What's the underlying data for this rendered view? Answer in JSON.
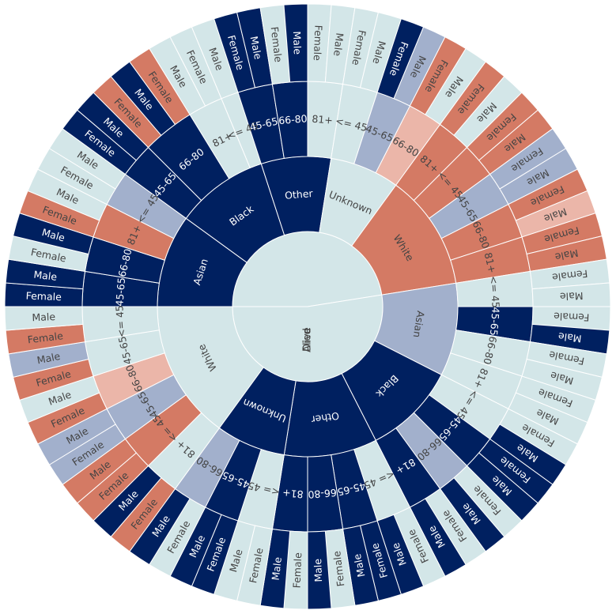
{
  "chart_data": {
    "type": "sunburst",
    "title": "",
    "palette": {
      "dark": "#002060",
      "pale": "#d3e6e8",
      "coral": "#d47a64",
      "lavender": "#a2b0cc",
      "pink": "#ebb6a9",
      "label_dark": "#ffffff",
      "label_light": "#444444",
      "stroke": "#ffffff"
    },
    "root": [
      {
        "label": "Alive",
        "color": "pale",
        "children": [
          {
            "label": "Asian",
            "color": "dark",
            "children": [
              {
                "label": "45-65",
                "color": "dark",
                "children": [
                  {
                    "label": "Female",
                    "color": "dark"
                  },
                  {
                    "label": "Male",
                    "color": "dark"
                  }
                ]
              },
              {
                "label": "66-80",
                "color": "dark",
                "children": [
                  {
                    "label": "Female",
                    "color": "pale"
                  },
                  {
                    "label": "Male",
                    "color": "dark"
                  }
                ]
              },
              {
                "label": "81+",
                "color": "coral",
                "children": [
                  {
                    "label": "Female",
                    "color": "coral"
                  },
                  {
                    "label": "Male",
                    "color": "pale"
                  }
                ]
              },
              {
                "label": "<= 45",
                "color": "lavender",
                "children": [
                  {
                    "label": "Female",
                    "color": "pale"
                  },
                  {
                    "label": "Male",
                    "color": "pale"
                  }
                ]
              }
            ]
          },
          {
            "label": "Black",
            "color": "dark",
            "children": [
              {
                "label": "45-65",
                "color": "dark",
                "children": [
                  {
                    "label": "Female",
                    "color": "dark"
                  },
                  {
                    "label": "Male",
                    "color": "dark"
                  }
                ]
              },
              {
                "label": "66-80",
                "color": "dark",
                "children": [
                  {
                    "label": "Female",
                    "color": "coral"
                  },
                  {
                    "label": "Male",
                    "color": "dark"
                  },
                  {
                    "label": "Female",
                    "color": "coral"
                  }
                ]
              },
              {
                "label": "81+",
                "color": "pale",
                "children": [
                  {
                    "label": "Male",
                    "color": "pale"
                  },
                  {
                    "label": "Female",
                    "color": "pale"
                  }
                ]
              },
              {
                "label": "<= 45",
                "color": "pale",
                "children": [
                  {
                    "label": "Male",
                    "color": "pale"
                  }
                ]
              }
            ]
          },
          {
            "label": "Other",
            "color": "dark",
            "children": [
              {
                "label": "45-65",
                "color": "dark",
                "children": [
                  {
                    "label": "Female",
                    "color": "dark"
                  },
                  {
                    "label": "Male",
                    "color": "dark"
                  }
                ]
              },
              {
                "label": "66-80",
                "color": "dark",
                "children": [
                  {
                    "label": "Female",
                    "color": "pale"
                  },
                  {
                    "label": "Male",
                    "color": "dark"
                  }
                ]
              },
              {
                "label": "81+",
                "color": "pale",
                "children": [
                  {
                    "label": "Female",
                    "color": "pale"
                  },
                  {
                    "label": "Male",
                    "color": "pale"
                  }
                ]
              }
            ]
          },
          {
            "label": "Unknown",
            "color": "pale",
            "children": [
              {
                "label": "<= 45",
                "color": "pale",
                "children": [
                  {
                    "label": "Female",
                    "color": "pale"
                  },
                  {
                    "label": "Male",
                    "color": "pale"
                  }
                ]
              },
              {
                "label": "45-65",
                "color": "lavender",
                "children": [
                  {
                    "label": "Female",
                    "color": "dark"
                  },
                  {
                    "label": "Male",
                    "color": "lavender"
                  }
                ]
              },
              {
                "label": "66-80",
                "color": "pink",
                "children": [
                  {
                    "label": "Female",
                    "color": "coral"
                  },
                  {
                    "label": "Male",
                    "color": "pale"
                  }
                ]
              }
            ]
          },
          {
            "label": "White",
            "color": "coral",
            "children": [
              {
                "label": "81+",
                "color": "coral",
                "children": [
                  {
                    "label": "Female",
                    "color": "coral"
                  },
                  {
                    "label": "Male",
                    "color": "pale"
                  }
                ]
              },
              {
                "label": "<= 45",
                "color": "coral",
                "children": [
                  {
                    "label": "Female",
                    "color": "coral"
                  },
                  {
                    "label": "Male",
                    "color": "coral"
                  }
                ]
              },
              {
                "label": "45-65",
                "color": "lavender",
                "children": [
                  {
                    "label": "Female",
                    "color": "lavender"
                  },
                  {
                    "label": "Male",
                    "color": "lavender"
                  }
                ]
              },
              {
                "label": "66-80",
                "color": "coral",
                "children": [
                  {
                    "label": "Female",
                    "color": "coral"
                  },
                  {
                    "label": "Male",
                    "color": "pink"
                  }
                ]
              },
              {
                "label": "81+",
                "color": "coral",
                "children": [
                  {
                    "label": "Female",
                    "color": "coral"
                  },
                  {
                    "label": "Male",
                    "color": "coral"
                  }
                ]
              }
            ]
          }
        ]
      },
      {
        "label": "Died",
        "color": "pale",
        "children": [
          {
            "label": "Asian",
            "color": "lavender",
            "children": [
              {
                "label": "<= 45",
                "color": "pale",
                "children": [
                  {
                    "label": "Female",
                    "color": "pale"
                  },
                  {
                    "label": "Male",
                    "color": "pale"
                  }
                ]
              },
              {
                "label": "45-65",
                "color": "dark",
                "children": [
                  {
                    "label": "Female",
                    "color": "pale"
                  },
                  {
                    "label": "Male",
                    "color": "dark"
                  }
                ]
              },
              {
                "label": "66-80",
                "color": "pale",
                "children": [
                  {
                    "label": "Female",
                    "color": "pale"
                  },
                  {
                    "label": "Male",
                    "color": "pale"
                  }
                ]
              },
              {
                "label": "81+",
                "color": "pale",
                "children": [
                  {
                    "label": "Female",
                    "color": "pale"
                  },
                  {
                    "label": "Male",
                    "color": "pale"
                  }
                ]
              }
            ]
          },
          {
            "label": "Black",
            "color": "dark",
            "children": [
              {
                "label": "<= 45",
                "color": "pale",
                "children": [
                  {
                    "label": "Female",
                    "color": "pale"
                  },
                  {
                    "label": "Male",
                    "color": "dark"
                  }
                ]
              },
              {
                "label": "45-65",
                "color": "dark",
                "children": [
                  {
                    "label": "Female",
                    "color": "dark"
                  },
                  {
                    "label": "Male",
                    "color": "dark"
                  }
                ]
              },
              {
                "label": "66-80",
                "color": "lavender",
                "children": [
                  {
                    "label": "Female",
                    "color": "pale"
                  },
                  {
                    "label": "Male",
                    "color": "dark"
                  }
                ]
              },
              {
                "label": "81+",
                "color": "dark",
                "children": [
                  {
                    "label": "Female",
                    "color": "pale"
                  },
                  {
                    "label": "Male",
                    "color": "dark"
                  }
                ]
              }
            ]
          },
          {
            "label": "Other",
            "color": "dark",
            "children": [
              {
                "label": "<= 45",
                "color": "pale",
                "children": [
                  {
                    "label": "Female",
                    "color": "pale"
                  },
                  {
                    "label": "Male",
                    "color": "dark"
                  }
                ]
              },
              {
                "label": "45-65",
                "color": "dark",
                "children": [
                  {
                    "label": "Female",
                    "color": "dark"
                  },
                  {
                    "label": "Male",
                    "color": "dark"
                  }
                ]
              },
              {
                "label": "66-80",
                "color": "dark",
                "children": [
                  {
                    "label": "Female",
                    "color": "pale"
                  },
                  {
                    "label": "Male",
                    "color": "dark"
                  }
                ]
              },
              {
                "label": "81+",
                "color": "dark",
                "children": [
                  {
                    "label": "Female",
                    "color": "pale"
                  },
                  {
                    "label": "Male",
                    "color": "dark"
                  }
                ]
              }
            ]
          },
          {
            "label": "Unknown",
            "color": "dark",
            "children": [
              {
                "label": "<= 45",
                "color": "pale",
                "children": [
                  {
                    "label": "Female",
                    "color": "pale"
                  },
                  {
                    "label": "Male",
                    "color": "pale"
                  }
                ]
              },
              {
                "label": "45-65",
                "color": "dark",
                "children": [
                  {
                    "label": "Female",
                    "color": "dark"
                  },
                  {
                    "label": "Male",
                    "color": "dark"
                  }
                ]
              },
              {
                "label": "66-80",
                "color": "lavender",
                "children": [
                  {
                    "label": "Female",
                    "color": "pale"
                  },
                  {
                    "label": "Male",
                    "color": "dark"
                  }
                ]
              }
            ]
          },
          {
            "label": "White",
            "color": "pale",
            "children": [
              {
                "label": "81+",
                "color": "pale",
                "children": [
                  {
                    "label": "Female",
                    "color": "coral"
                  },
                  {
                    "label": "Male",
                    "color": "dark"
                  }
                ]
              },
              {
                "label": "<= 45",
                "color": "coral",
                "children": [
                  {
                    "label": "Female",
                    "color": "coral"
                  },
                  {
                    "label": "Male",
                    "color": "coral"
                  }
                ]
              },
              {
                "label": "45-65",
                "color": "lavender",
                "children": [
                  {
                    "label": "Female",
                    "color": "lavender"
                  },
                  {
                    "label": "Male",
                    "color": "lavender"
                  }
                ]
              },
              {
                "label": "66-80",
                "color": "pink",
                "children": [
                  {
                    "label": "Female",
                    "color": "coral"
                  },
                  {
                    "label": "Male",
                    "color": "pale"
                  }
                ]
              },
              {
                "label": "45-65",
                "color": "pale",
                "children": [
                  {
                    "label": "Female",
                    "color": "coral"
                  },
                  {
                    "label": "Male",
                    "color": "lavender"
                  }
                ]
              },
              {
                "label": "<= 45",
                "color": "pale",
                "children": [
                  {
                    "label": "Female",
                    "color": "coral"
                  },
                  {
                    "label": "Male",
                    "color": "pale"
                  }
                ]
              }
            ]
          }
        ]
      }
    ]
  }
}
